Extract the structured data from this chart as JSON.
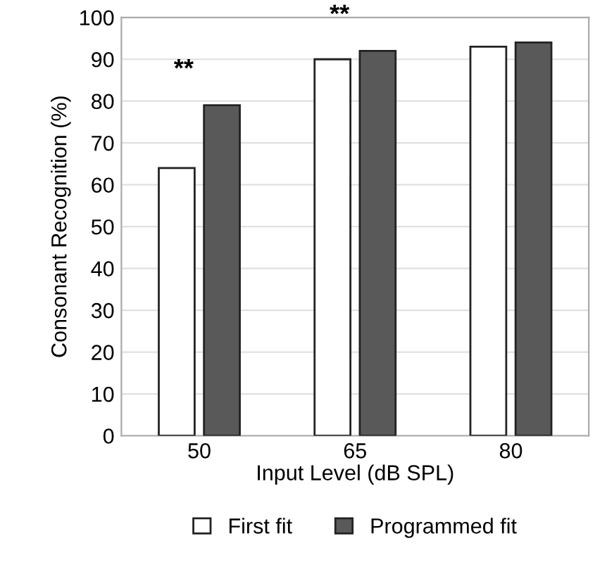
{
  "chart_data": {
    "type": "bar",
    "xlabel": "Input Level (dB SPL)",
    "ylabel": "Consonant Recognition (%)",
    "categories": [
      "50",
      "65",
      "80"
    ],
    "series": [
      {
        "name": "First fit",
        "color": "#ffffff",
        "values": [
          64,
          90,
          93
        ]
      },
      {
        "name": "Programmed fit",
        "color": "#595959",
        "values": [
          79,
          92,
          94
        ]
      }
    ],
    "ylim": [
      0,
      100
    ],
    "yticks": [
      0,
      10,
      20,
      30,
      40,
      50,
      60,
      70,
      80,
      90,
      100
    ],
    "grid": "y",
    "legend": "bottom",
    "annotations": [
      "**",
      "**"
    ]
  }
}
